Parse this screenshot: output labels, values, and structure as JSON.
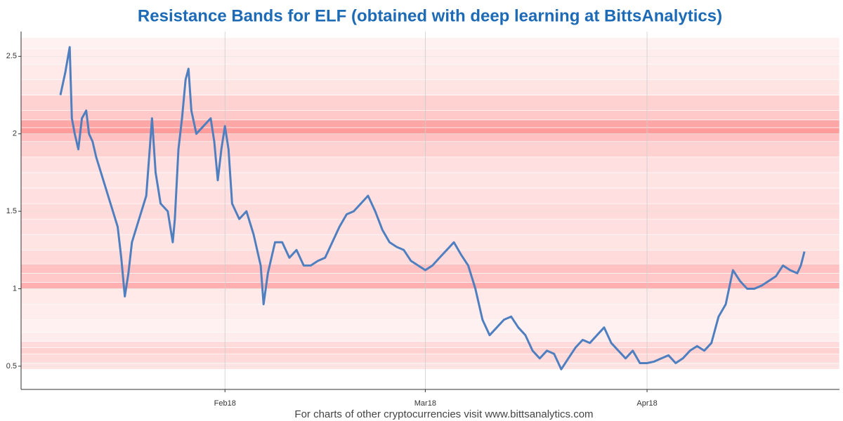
{
  "chart_data": {
    "type": "line",
    "title": "Resistance Bands for ELF (obtained with deep learning at BittsAnalytics)",
    "footer": "For charts of other cryptocurrencies visit www.bittsanalytics.com",
    "grid": true,
    "xlim": [
      2.5,
      116.9
    ],
    "xticks": [
      {
        "value": 31,
        "label": "Feb18"
      },
      {
        "value": 59,
        "label": "Mar18"
      },
      {
        "value": 90,
        "label": "Apr18"
      }
    ],
    "ylim": [
      0.35,
      2.66
    ],
    "yticks": [
      0.5,
      1,
      1.5,
      2,
      2.5
    ],
    "band_color": "#ff4d4d",
    "bands": [
      {
        "range": [
          0.48,
          0.52
        ],
        "alpha": 0.15
      },
      {
        "range": [
          0.52,
          0.58
        ],
        "alpha": 0.2
      },
      {
        "range": [
          0.58,
          0.62
        ],
        "alpha": 0.25
      },
      {
        "range": [
          0.62,
          0.66
        ],
        "alpha": 0.2
      },
      {
        "range": [
          0.66,
          0.72
        ],
        "alpha": 0.1
      },
      {
        "range": [
          0.72,
          0.8
        ],
        "alpha": 0.08
      },
      {
        "range": [
          0.8,
          0.9
        ],
        "alpha": 0.1
      },
      {
        "range": [
          0.9,
          1.0
        ],
        "alpha": 0.12
      },
      {
        "range": [
          1.0,
          1.04
        ],
        "alpha": 0.45
      },
      {
        "range": [
          1.04,
          1.1
        ],
        "alpha": 0.3
      },
      {
        "range": [
          1.1,
          1.16
        ],
        "alpha": 0.35
      },
      {
        "range": [
          1.16,
          1.25
        ],
        "alpha": 0.2
      },
      {
        "range": [
          1.25,
          1.35
        ],
        "alpha": 0.15
      },
      {
        "range": [
          1.35,
          1.45
        ],
        "alpha": 0.18
      },
      {
        "range": [
          1.45,
          1.55
        ],
        "alpha": 0.2
      },
      {
        "range": [
          1.55,
          1.65
        ],
        "alpha": 0.18
      },
      {
        "range": [
          1.65,
          1.75
        ],
        "alpha": 0.15
      },
      {
        "range": [
          1.75,
          1.85
        ],
        "alpha": 0.18
      },
      {
        "range": [
          1.85,
          1.95
        ],
        "alpha": 0.25
      },
      {
        "range": [
          1.95,
          2.0
        ],
        "alpha": 0.35
      },
      {
        "range": [
          2.0,
          2.04
        ],
        "alpha": 0.55
      },
      {
        "range": [
          2.04,
          2.09
        ],
        "alpha": 0.5
      },
      {
        "range": [
          2.09,
          2.15
        ],
        "alpha": 0.3
      },
      {
        "range": [
          2.15,
          2.25
        ],
        "alpha": 0.25
      },
      {
        "range": [
          2.25,
          2.35
        ],
        "alpha": 0.15
      },
      {
        "range": [
          2.35,
          2.45
        ],
        "alpha": 0.12
      },
      {
        "range": [
          2.45,
          2.55
        ],
        "alpha": 0.1
      },
      {
        "range": [
          2.55,
          2.62
        ],
        "alpha": 0.08
      }
    ],
    "x": [
      8,
      8.7,
      9.3,
      9.6,
      10,
      10.5,
      11,
      11.6,
      12,
      12.5,
      13,
      14,
      15,
      16,
      16.5,
      17,
      17.5,
      18,
      19,
      20,
      20.8,
      21.3,
      22,
      23,
      23.7,
      24,
      24.5,
      25,
      25.5,
      25.9,
      26.3,
      27,
      28,
      29,
      29.5,
      30,
      30.5,
      31,
      31.5,
      32,
      33,
      34,
      35,
      36,
      36.4,
      37,
      38,
      39,
      40,
      41,
      42,
      43,
      44,
      45,
      46,
      47,
      48,
      49,
      50,
      51,
      52,
      53,
      54,
      55,
      56,
      57,
      58,
      59,
      60,
      61,
      62,
      63,
      64,
      65,
      66,
      67,
      68,
      69,
      70,
      71,
      72,
      73,
      74,
      75,
      76,
      77,
      78,
      79,
      80,
      81,
      82,
      83,
      84,
      85,
      86,
      87,
      88,
      89,
      90,
      91,
      92,
      93,
      94,
      95,
      96,
      97,
      98,
      99,
      100,
      101,
      102,
      103,
      104,
      105,
      106,
      107,
      108,
      109,
      110,
      111,
      111.5,
      112
    ],
    "series": [
      {
        "color": "#4f7fbf",
        "values": [
          2.25,
          2.4,
          2.56,
          2.1,
          2.0,
          1.9,
          2.1,
          2.15,
          2.0,
          1.95,
          1.85,
          1.7,
          1.55,
          1.4,
          1.2,
          0.95,
          1.1,
          1.3,
          1.45,
          1.6,
          2.1,
          1.75,
          1.55,
          1.5,
          1.3,
          1.45,
          1.9,
          2.1,
          2.35,
          2.42,
          2.15,
          2.0,
          2.05,
          2.1,
          1.95,
          1.7,
          1.9,
          2.05,
          1.9,
          1.55,
          1.45,
          1.5,
          1.35,
          1.15,
          0.9,
          1.1,
          1.3,
          1.3,
          1.2,
          1.25,
          1.15,
          1.15,
          1.18,
          1.2,
          1.3,
          1.4,
          1.48,
          1.5,
          1.55,
          1.6,
          1.5,
          1.38,
          1.3,
          1.27,
          1.25,
          1.18,
          1.15,
          1.12,
          1.15,
          1.2,
          1.25,
          1.3,
          1.22,
          1.15,
          1.0,
          0.8,
          0.7,
          0.75,
          0.8,
          0.82,
          0.75,
          0.7,
          0.6,
          0.55,
          0.6,
          0.58,
          0.48,
          0.55,
          0.62,
          0.67,
          0.65,
          0.7,
          0.75,
          0.65,
          0.6,
          0.55,
          0.6,
          0.52,
          0.52,
          0.53,
          0.55,
          0.57,
          0.52,
          0.55,
          0.6,
          0.63,
          0.6,
          0.65,
          0.82,
          0.9,
          1.12,
          1.05,
          1.0,
          1.0,
          1.02,
          1.05,
          1.08,
          1.15,
          1.12,
          1.1,
          1.15,
          1.24
        ]
      }
    ]
  }
}
